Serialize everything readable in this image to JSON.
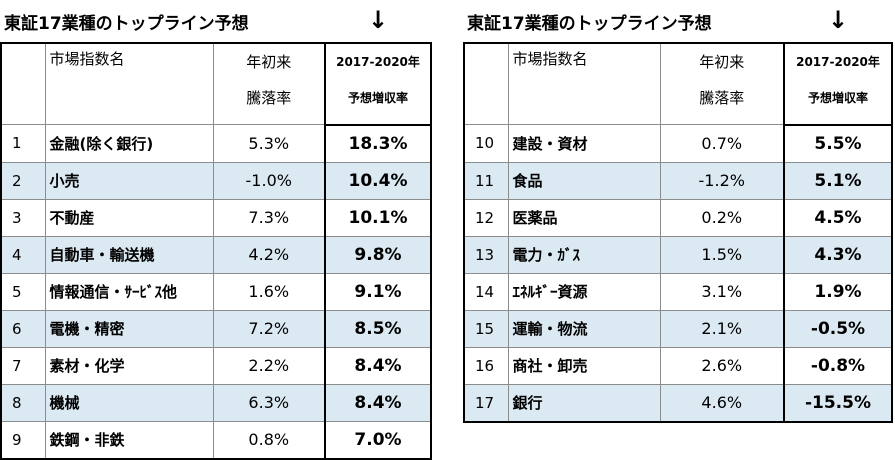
{
  "left": {
    "title": "東証17業種のトップライン予想",
    "arrow": "↓",
    "headers": {
      "name": "市場指数名",
      "change_l1": "年初来",
      "change_l2": "騰落率",
      "proj_l1": "2017-2020年",
      "proj_l2": "予想増収率"
    },
    "rows": [
      {
        "num": "1",
        "name": "金融(除く銀行)",
        "change": "5.3%",
        "proj": "18.3%"
      },
      {
        "num": "2",
        "name": "小売",
        "change": "-1.0%",
        "proj": "10.4%"
      },
      {
        "num": "3",
        "name": "不動産",
        "change": "7.3%",
        "proj": "10.1%"
      },
      {
        "num": "4",
        "name": "自動車・輸送機",
        "change": "4.2%",
        "proj": "9.8%"
      },
      {
        "num": "5",
        "name": "情報通信・ｻｰﾋﾞｽ他",
        "change": "1.6%",
        "proj": "9.1%"
      },
      {
        "num": "6",
        "name": "電機・精密",
        "change": "7.2%",
        "proj": "8.5%"
      },
      {
        "num": "7",
        "name": "素材・化学",
        "change": "2.2%",
        "proj": "8.4%"
      },
      {
        "num": "8",
        "name": "機械",
        "change": "6.3%",
        "proj": "8.4%"
      },
      {
        "num": "9",
        "name": "鉄鋼・非鉄",
        "change": "0.8%",
        "proj": "7.0%"
      }
    ]
  },
  "right": {
    "title": "東証17業種のトップライン予想",
    "arrow": "↓",
    "headers": {
      "name": "市場指数名",
      "change_l1": "年初来",
      "change_l2": "騰落率",
      "proj_l1": "2017-2020年",
      "proj_l2": "予想増収率"
    },
    "rows": [
      {
        "num": "10",
        "name": "建設・資材",
        "change": "0.7%",
        "proj": "5.5%"
      },
      {
        "num": "11",
        "name": "食品",
        "change": "-1.2%",
        "proj": "5.1%"
      },
      {
        "num": "12",
        "name": "医薬品",
        "change": "0.2%",
        "proj": "4.5%"
      },
      {
        "num": "13",
        "name": "電力・ｶﾞｽ",
        "change": "1.5%",
        "proj": "4.3%"
      },
      {
        "num": "14",
        "name": "ｴﾈﾙｷﾞｰ資源",
        "change": "3.1%",
        "proj": "1.9%"
      },
      {
        "num": "15",
        "name": "運輸・物流",
        "change": "2.1%",
        "proj": "-0.5%"
      },
      {
        "num": "16",
        "name": "商社・卸売",
        "change": "2.6%",
        "proj": "-0.8%"
      },
      {
        "num": "17",
        "name": "銀行",
        "change": "4.6%",
        "proj": "-15.5%"
      }
    ]
  },
  "colors": {
    "shade": "#dbe9f2",
    "border": "#000000",
    "grid": "#8c8c8c"
  }
}
